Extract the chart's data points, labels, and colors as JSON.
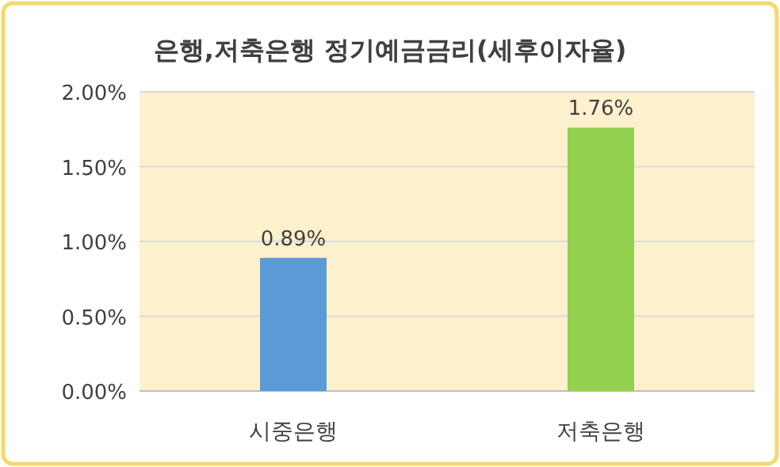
{
  "chart_data": {
    "type": "bar",
    "title": "은행,저축은행 정기예금금리(세후이자율)",
    "categories": [
      "시중은행",
      "저축은행"
    ],
    "values": [
      0.89,
      1.76
    ],
    "colors": [
      "#5b9bd5",
      "#92d050"
    ],
    "value_labels": [
      "0.89%",
      "1.76%"
    ],
    "ylim": [
      0,
      2
    ],
    "yticks": [
      {
        "value": 0,
        "label": "0.00%"
      },
      {
        "value": 0.5,
        "label": "0.50%"
      },
      {
        "value": 1,
        "label": "1.00%"
      },
      {
        "value": 1.5,
        "label": "1.50%"
      },
      {
        "value": 2,
        "label": "2.00%"
      }
    ],
    "grid": "y"
  }
}
